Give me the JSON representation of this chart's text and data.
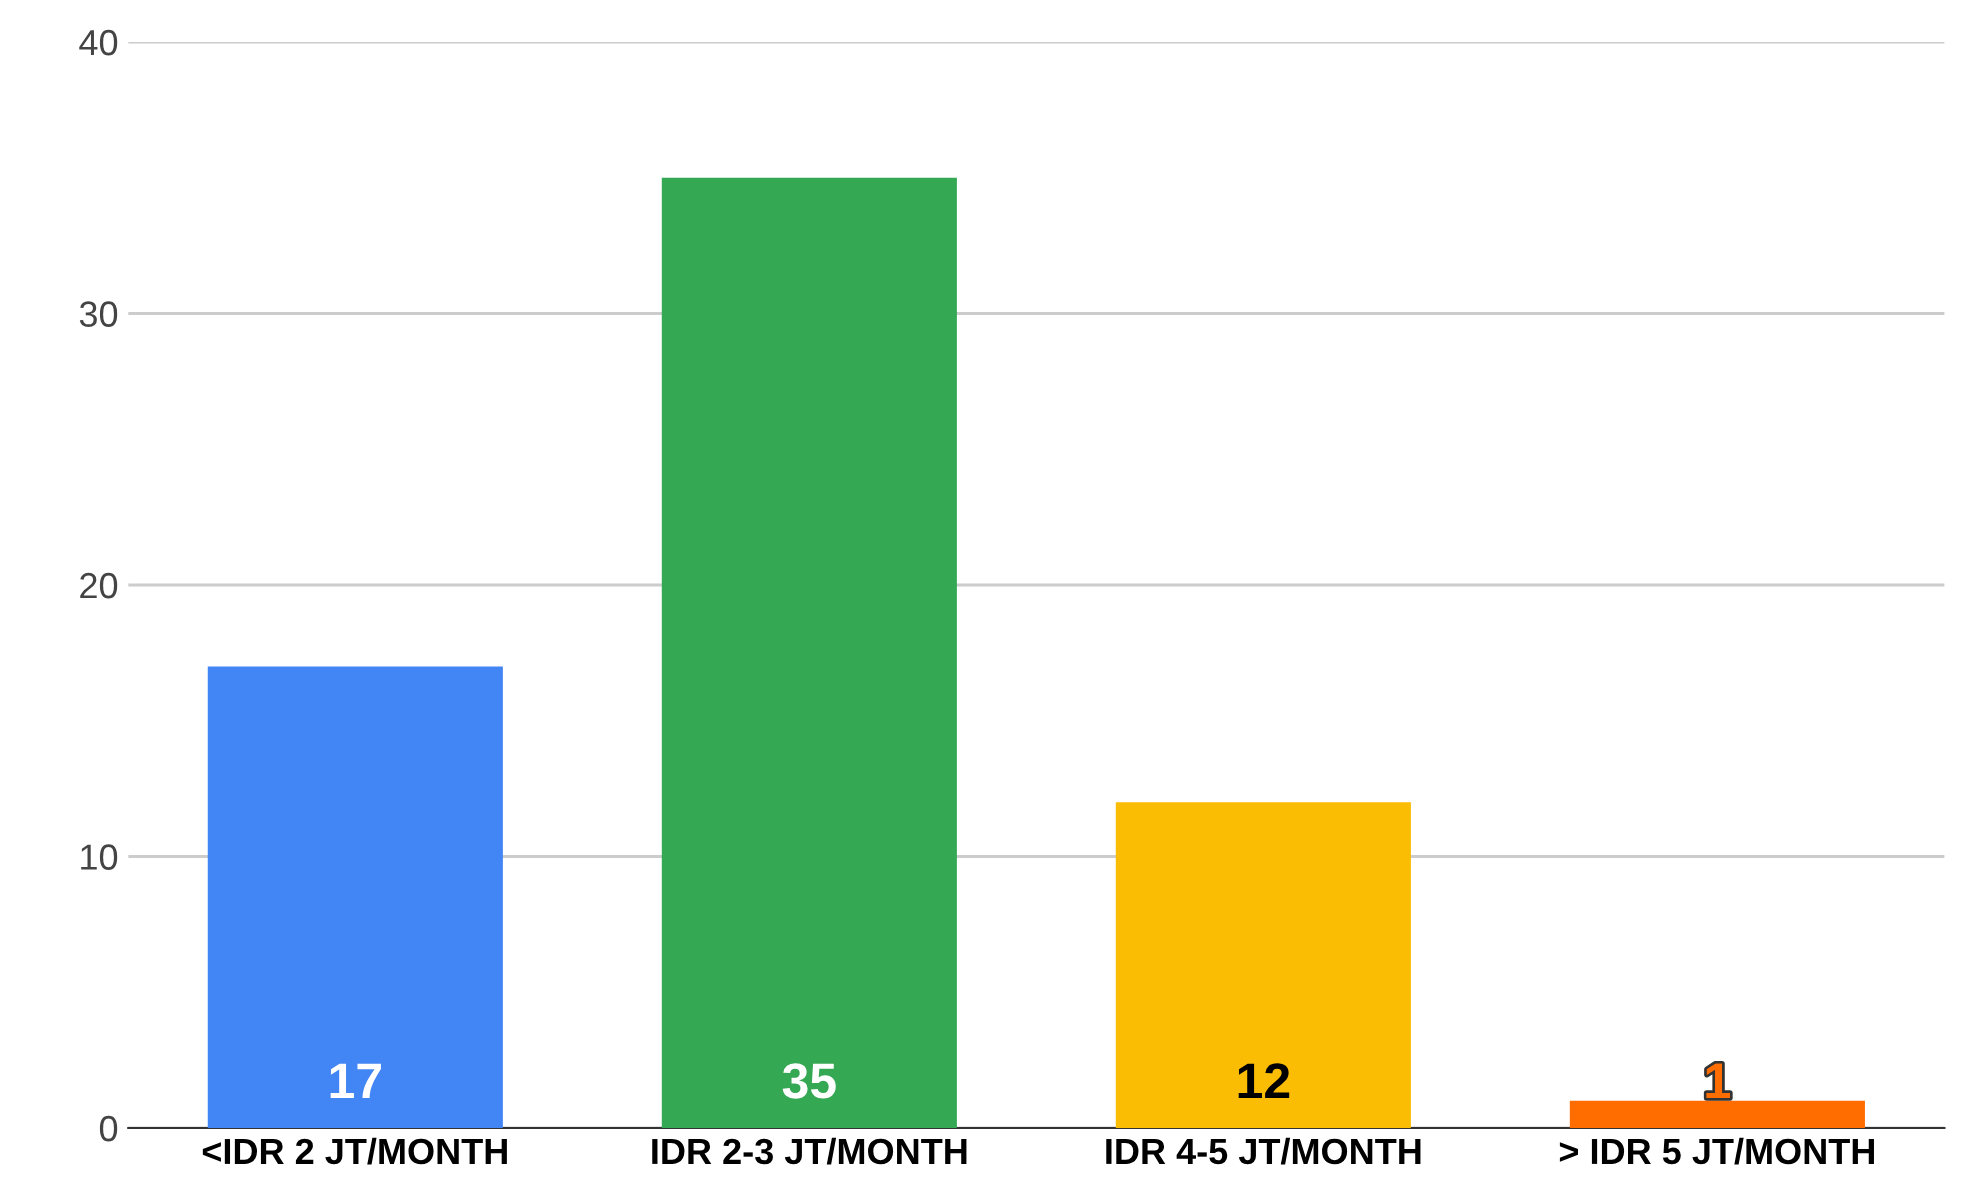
{
  "chart_data": {
    "type": "bar",
    "categories": [
      "<IDR 2 JT/MONTH",
      "IDR 2-3 JT/MONTH",
      "IDR 4-5 JT/MONTH",
      "> IDR 5 JT/MONTH"
    ],
    "values": [
      17,
      35,
      12,
      1
    ],
    "colors": [
      "#4285f4",
      "#34a853",
      "#fbbc04",
      "#ff6d01"
    ],
    "ylim": [
      0,
      40
    ],
    "yticks": [
      0,
      10,
      20,
      30,
      40
    ],
    "grid": "y",
    "data_labels": true
  }
}
